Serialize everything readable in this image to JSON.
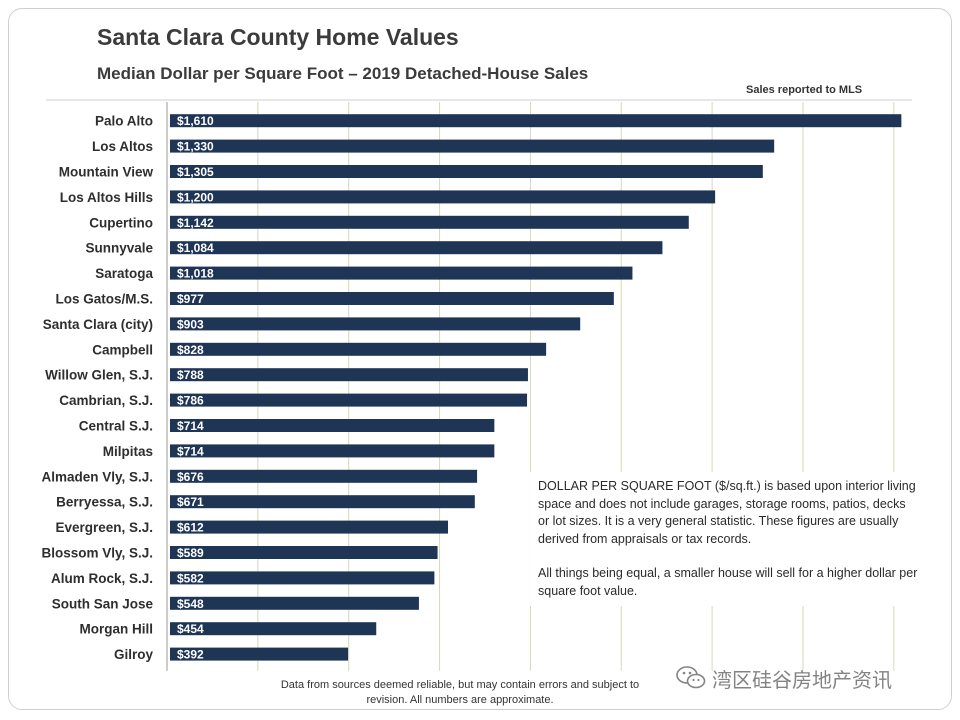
{
  "title": "Santa Clara County Home Values",
  "subtitle": "Median Dollar per Square Foot – 2019 Detached-House Sales",
  "source_note": "Sales reported to MLS",
  "info_text": [
    "DOLLAR PER SQUARE FOOT ($/sq.ft.) is based upon interior living space and does not include garages, storage rooms, patios, decks or lot sizes. It is a very general statistic. These figures are usually derived from appraisals or tax records.",
    "All things being equal, a smaller house will sell for a higher dollar per square foot value."
  ],
  "footer": "Data from sources deemed reliable, but may contain errors and subject to revision. All numbers are approximate.",
  "watermark_text": "湾区硅谷房地产资讯",
  "watermark_icon": "wechat-icon",
  "colors": {
    "bar": "#1f3555",
    "bar_label": "#ffffff",
    "grid": "#d9d6b8",
    "text": "#333333"
  },
  "chart_data": {
    "type": "bar",
    "orientation": "horizontal",
    "categories": [
      "Palo Alto",
      "Los Altos",
      "Mountain View",
      "Los Altos Hills",
      "Cupertino",
      "Sunnyvale",
      "Saratoga",
      "Los Gatos/M.S.",
      "Santa Clara (city)",
      "Campbell",
      "Willow Glen, S.J.",
      "Cambrian, S.J.",
      "Central S.J.",
      "Milpitas",
      "Almaden Vly, S.J.",
      "Berryessa, S.J.",
      "Evergreen, S.J.",
      "Blossom Vly, S.J.",
      "Alum Rock, S.J.",
      "South San Jose",
      "Morgan Hill",
      "Gilroy"
    ],
    "values": [
      1610,
      1330,
      1305,
      1200,
      1142,
      1084,
      1018,
      977,
      903,
      828,
      788,
      786,
      714,
      714,
      676,
      671,
      612,
      589,
      582,
      548,
      454,
      392
    ],
    "data_labels": [
      "$1,610",
      "$1,330",
      "$1,305",
      "$1,200",
      "$1,142",
      "$1,084",
      "$1,018",
      "$977",
      "$903",
      "$828",
      "$788",
      "$786",
      "$714",
      "$714",
      "$676",
      "$671",
      "$612",
      "$589",
      "$582",
      "$548",
      "$454",
      "$392"
    ],
    "title": "Santa Clara County Home Values",
    "subtitle": "Median Dollar per Square Foot – 2019 Detached-House Sales",
    "xlabel": "",
    "ylabel": "",
    "xlim": [
      0,
      1640
    ],
    "grid": true,
    "legend": "none"
  }
}
